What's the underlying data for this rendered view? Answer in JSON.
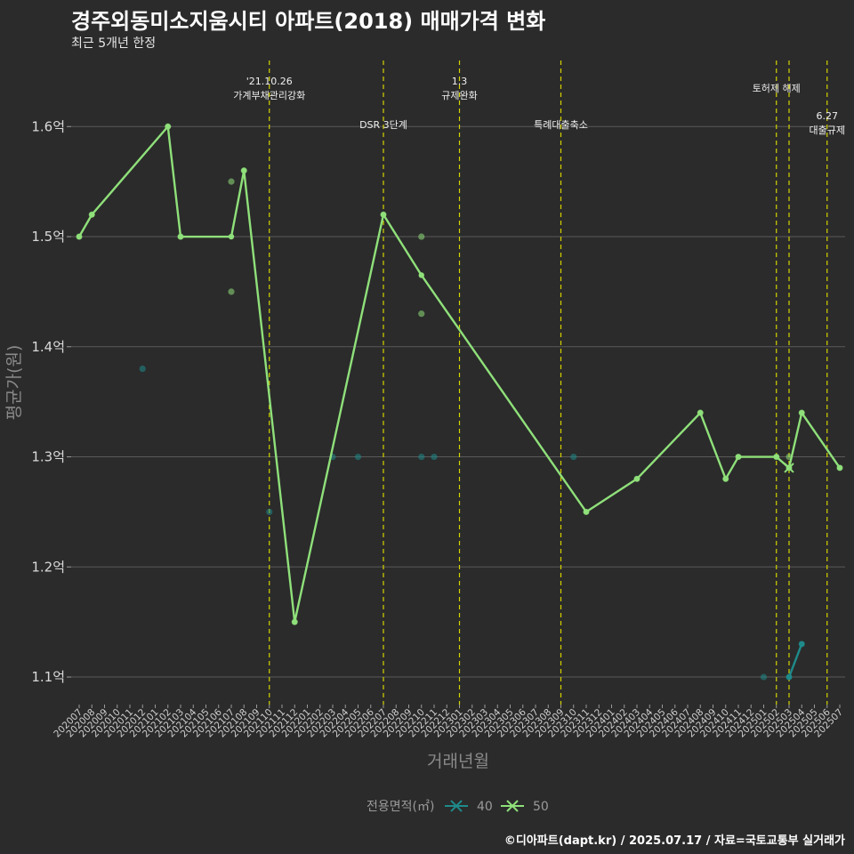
{
  "header": {
    "title": "경주외동미소지움시티 아파트(2018) 매매가격 변화",
    "subtitle": "최근 5개년 한정"
  },
  "caption": "©디아파트(dapt.kr) / 2025.07.17 / 자료=국토교통부 실거래가",
  "chart_data": {
    "type": "line",
    "xlabel": "거래년월",
    "ylabel": "평균가(원)",
    "ylim": [
      1.075,
      1.66
    ],
    "y_ticks": [
      1.1,
      1.2,
      1.3,
      1.4,
      1.5,
      1.6
    ],
    "y_tick_labels": [
      "1.1억",
      "1.2억",
      "1.3억",
      "1.4억",
      "1.5억",
      "1.6억"
    ],
    "x_categories": [
      "202007",
      "202008",
      "202009",
      "202010",
      "202011",
      "202012",
      "202101",
      "202102",
      "202103",
      "202104",
      "202105",
      "202106",
      "202107",
      "202108",
      "202109",
      "202110",
      "202111",
      "202112",
      "202201",
      "202202",
      "202203",
      "202204",
      "202205",
      "202206",
      "202207",
      "202208",
      "202209",
      "202210",
      "202211",
      "202212",
      "202301",
      "202302",
      "202303",
      "202304",
      "202305",
      "202306",
      "202307",
      "202308",
      "202309",
      "202310",
      "202311",
      "202312",
      "202401",
      "202402",
      "202403",
      "202404",
      "202405",
      "202406",
      "202407",
      "202408",
      "202409",
      "202410",
      "202411",
      "202412",
      "202501",
      "202502",
      "202503",
      "202504",
      "202505",
      "202506",
      "202507"
    ],
    "grid": true,
    "colors": {
      "40": "#1f8a8a",
      "50": "#8fe07a",
      "background": "#2b2b2b",
      "grid": "#5a5a5a",
      "event_line": "#d4d400"
    },
    "legend": {
      "title": "전용면적(㎡)",
      "position": "bottom",
      "entries": [
        "40",
        "50"
      ]
    },
    "series": [
      {
        "name": "40",
        "line": [
          [
            "202503",
            1.1
          ],
          [
            "202504",
            1.13
          ]
        ],
        "points": [
          [
            "202012",
            1.38
          ],
          [
            "202110",
            1.25
          ],
          [
            "202203",
            1.3
          ],
          [
            "202205",
            1.3
          ],
          [
            "202210",
            1.3
          ],
          [
            "202211",
            1.3
          ],
          [
            "202310",
            1.3
          ],
          [
            "202501",
            1.1
          ],
          [
            "202503",
            1.1
          ],
          [
            "202504",
            1.13
          ]
        ]
      },
      {
        "name": "50",
        "line": [
          [
            "202007",
            1.5
          ],
          [
            "202008",
            1.52
          ],
          [
            "202102",
            1.6
          ],
          [
            "202103",
            1.5
          ],
          [
            "202107",
            1.5
          ],
          [
            "202108",
            1.56
          ],
          [
            "202112",
            1.15
          ],
          [
            "202207",
            1.52
          ],
          [
            "202210",
            1.465
          ],
          [
            "202311",
            1.25
          ],
          [
            "202403",
            1.28
          ],
          [
            "202408",
            1.34
          ],
          [
            "202410",
            1.28
          ],
          [
            "202411",
            1.3
          ],
          [
            "202502",
            1.3
          ],
          [
            "202503",
            1.29
          ],
          [
            "202504",
            1.34
          ],
          [
            "202507",
            1.29
          ]
        ],
        "points": [
          [
            "202007",
            1.5
          ],
          [
            "202008",
            1.52
          ],
          [
            "202102",
            1.6
          ],
          [
            "202103",
            1.5
          ],
          [
            "202107",
            1.55
          ],
          [
            "202107",
            1.45
          ],
          [
            "202108",
            1.56
          ],
          [
            "202112",
            1.15
          ],
          [
            "202207",
            1.52
          ],
          [
            "202210",
            1.5
          ],
          [
            "202210",
            1.43
          ],
          [
            "202311",
            1.25
          ],
          [
            "202403",
            1.28
          ],
          [
            "202408",
            1.34
          ],
          [
            "202410",
            1.28
          ],
          [
            "202411",
            1.3
          ],
          [
            "202502",
            1.3
          ],
          [
            "202503",
            1.3
          ],
          [
            "202503",
            1.29
          ],
          [
            "202504",
            1.34
          ],
          [
            "202507",
            1.29
          ]
        ]
      }
    ],
    "events": [
      {
        "x": "202110",
        "lines": [
          "'21.10.26",
          "가계부채관리강화"
        ],
        "level": "top"
      },
      {
        "x": "202207",
        "lines": [
          "DSR 3단계"
        ],
        "level": "low"
      },
      {
        "x": "202301",
        "lines": [
          "1.3",
          "규제완화"
        ],
        "level": "top"
      },
      {
        "x": "202309",
        "lines": [
          "특례대출축소"
        ],
        "level": "low"
      },
      {
        "x": "202502",
        "lines": [
          "토허제 해제"
        ],
        "level": "mid"
      },
      {
        "x": "202503",
        "lines": [],
        "level": "none"
      },
      {
        "x": "202506",
        "lines": [
          "6.27",
          "대출규제"
        ],
        "level": "right"
      }
    ]
  }
}
